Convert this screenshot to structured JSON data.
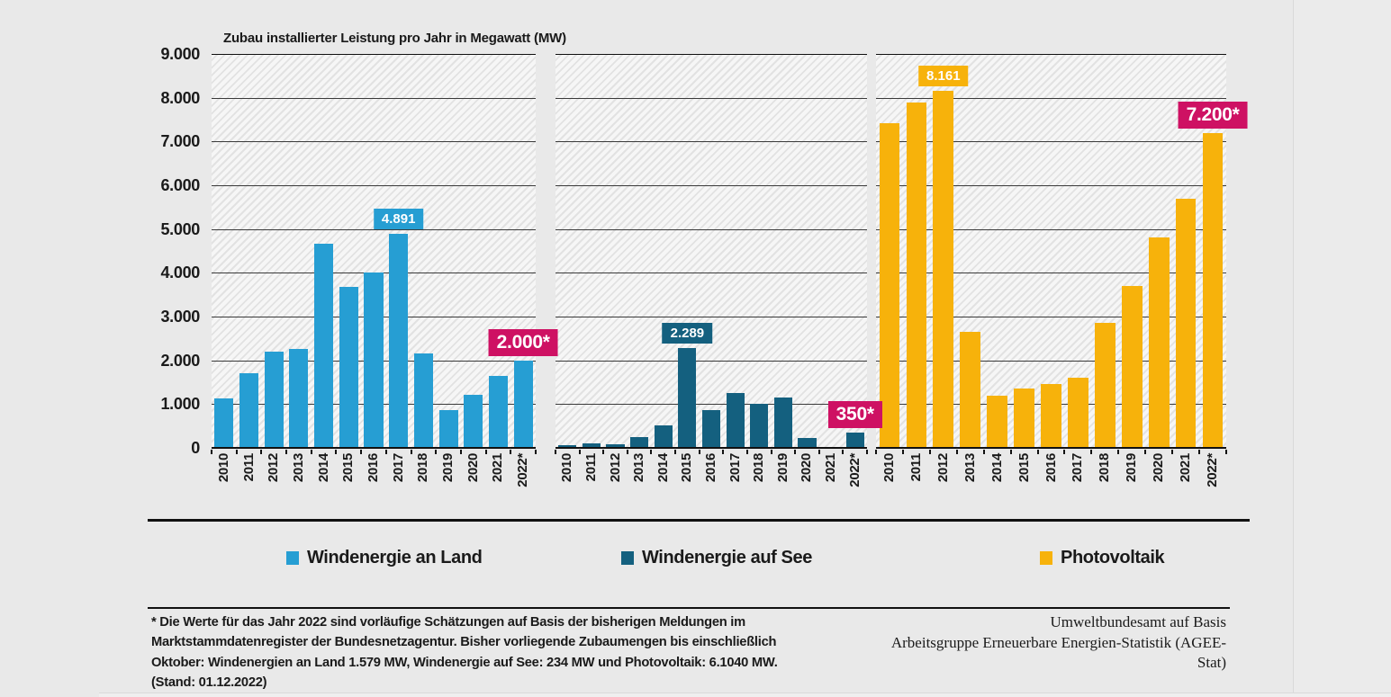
{
  "title": "Zubau installierter Leistung pro Jahr in Megawatt (MW)",
  "colors": {
    "onshore": "#269ED3",
    "offshore": "#14607F",
    "pv": "#F7B20B",
    "highlight": "#CE1163",
    "background": "#E9E9E9",
    "grid": "#3A3A3A",
    "axis": "#111111"
  },
  "chart_data": {
    "type": "bar",
    "categories": [
      "2010",
      "2011",
      "2012",
      "2013",
      "2014",
      "2015",
      "2016",
      "2017",
      "2018",
      "2019",
      "2020",
      "2021",
      "2022*"
    ],
    "series": [
      {
        "name": "Windenergie an Land",
        "color_key": "onshore",
        "values": [
          1130,
          1710,
          2200,
          2270,
          4660,
          3670,
          4000,
          4891,
          2160,
          860,
          1210,
          1650,
          2000
        ]
      },
      {
        "name": "Windenergie auf See",
        "color_key": "offshore",
        "values": [
          60,
          110,
          80,
          240,
          520,
          2289,
          860,
          1250,
          1000,
          1150,
          230,
          0,
          350
        ]
      },
      {
        "name": "Photovoltaik",
        "color_key": "pv",
        "values": [
          7410,
          7900,
          8161,
          2650,
          1190,
          1350,
          1460,
          1600,
          2850,
          3700,
          4800,
          5690,
          7200
        ]
      }
    ],
    "ylabel": "Zubau installierter Leistung pro Jahr in Megawatt (MW)",
    "ylim": [
      0,
      9000
    ],
    "ytick_labels": [
      "9.000",
      "8.000",
      "7.000",
      "6.000",
      "5.000",
      "4.000",
      "3.000",
      "2.000",
      "1.000",
      "0"
    ],
    "grid": true,
    "legend_position": "bottom",
    "callouts": [
      {
        "text": "4.891",
        "series": 0,
        "year_index": 7,
        "style": "series"
      },
      {
        "text": "2.000*",
        "series": 0,
        "year_index": 12,
        "style": "highlight"
      },
      {
        "text": "2.289",
        "series": 1,
        "year_index": 5,
        "style": "series"
      },
      {
        "text": "350*",
        "series": 1,
        "year_index": 12,
        "style": "highlight"
      },
      {
        "text": "8.161",
        "series": 2,
        "year_index": 2,
        "style": "series"
      },
      {
        "text": "7.200*",
        "series": 2,
        "year_index": 12,
        "style": "highlight"
      }
    ]
  },
  "legend": {
    "items": [
      {
        "label": "Windenergie an Land",
        "color_key": "onshore"
      },
      {
        "label": "Windenergie auf See",
        "color_key": "offshore"
      },
      {
        "label": "Photovoltaik",
        "color_key": "pv"
      }
    ]
  },
  "footnote": {
    "lines": [
      "* Die Werte für das Jahr 2022 sind vorläufige Schätzungen auf Basis der bisherigen Meldungen im",
      "Marktstammdatenregister der Bundesnetzagentur. Bisher vorliegende Zubaumengen bis einschließlich",
      "Oktober: Windenergien an Land 1.579 MW, Windenergie auf See: 234 MW und Photovoltaik: 6.1040 MW.",
      "(Stand: 01.12.2022)"
    ]
  },
  "source": {
    "lines": [
      "Umweltbundesamt auf Basis",
      "Arbeitsgruppe Erneuerbare Energien-Statistik (AGEE-Stat)"
    ]
  }
}
